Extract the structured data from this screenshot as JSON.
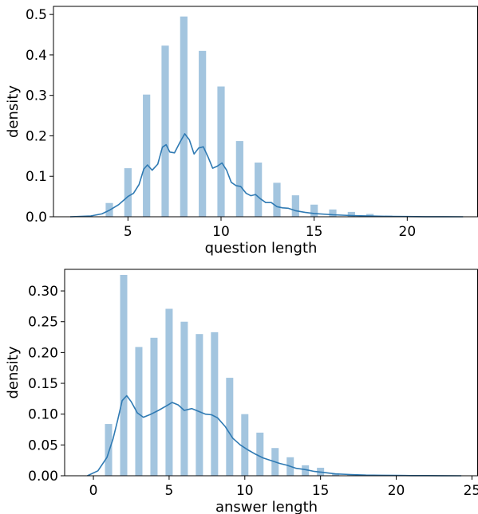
{
  "chart_data": [
    {
      "type": "bar",
      "title": "",
      "xlabel": "question length",
      "ylabel": "density",
      "xlim": [
        1,
        23.8
      ],
      "ylim": [
        0,
        0.52
      ],
      "xticks": [
        5,
        10,
        15,
        20
      ],
      "yticks": [
        0.0,
        0.1,
        0.2,
        0.3,
        0.4,
        0.5
      ],
      "ytick_labels": [
        "0.0",
        "0.1",
        "0.2",
        "0.3",
        "0.4",
        "0.5"
      ],
      "bar_color": "#a3c5df",
      "line_color": "#2f7ab3",
      "histogram": {
        "x": [
          4,
          5,
          6,
          7,
          8,
          9,
          10,
          11,
          12,
          13,
          14,
          15,
          16,
          17,
          18,
          19
        ],
        "values": [
          0.034,
          0.12,
          0.302,
          0.423,
          0.495,
          0.41,
          0.322,
          0.187,
          0.134,
          0.084,
          0.053,
          0.03,
          0.018,
          0.012,
          0.007,
          0.003
        ]
      },
      "kde": {
        "x": [
          1.9,
          3.0,
          3.6,
          4.0,
          4.5,
          5.0,
          5.3,
          5.6,
          5.85,
          6.05,
          6.3,
          6.6,
          6.85,
          7.05,
          7.25,
          7.5,
          7.8,
          8.05,
          8.3,
          8.55,
          8.8,
          9.05,
          9.3,
          9.55,
          9.8,
          10.05,
          10.3,
          10.55,
          10.8,
          11.05,
          11.35,
          11.6,
          11.85,
          12.1,
          12.4,
          12.7,
          13.0,
          13.3,
          13.6,
          14.0,
          14.5,
          15.0,
          16.0,
          17.0,
          18.0,
          19.0,
          20.0,
          21.0,
          22.0,
          23.0
        ],
        "y": [
          0.0,
          0.002,
          0.007,
          0.016,
          0.03,
          0.05,
          0.058,
          0.08,
          0.118,
          0.128,
          0.115,
          0.13,
          0.172,
          0.178,
          0.16,
          0.158,
          0.185,
          0.205,
          0.19,
          0.155,
          0.17,
          0.173,
          0.148,
          0.12,
          0.125,
          0.133,
          0.115,
          0.085,
          0.077,
          0.075,
          0.058,
          0.052,
          0.055,
          0.045,
          0.035,
          0.035,
          0.025,
          0.022,
          0.021,
          0.015,
          0.011,
          0.008,
          0.005,
          0.003,
          0.002,
          0.001,
          0.0005,
          0.0002,
          0.0001,
          0.0
        ]
      }
    },
    {
      "type": "bar",
      "title": "",
      "xlabel": "answer length",
      "ylabel": "density",
      "xlim": [
        -1.9,
        25.4
      ],
      "ylim": [
        0,
        0.335
      ],
      "xticks": [
        0,
        5,
        10,
        15,
        20,
        25
      ],
      "yticks": [
        0.0,
        0.05,
        0.1,
        0.15,
        0.2,
        0.25,
        0.3
      ],
      "ytick_labels": [
        "0.00",
        "0.05",
        "0.10",
        "0.15",
        "0.20",
        "0.25",
        "0.30"
      ],
      "bar_color": "#a3c5df",
      "line_color": "#2f7ab3",
      "histogram": {
        "x": [
          1,
          2,
          3,
          4,
          5,
          6,
          7,
          8,
          9,
          10,
          11,
          12,
          13,
          14,
          15,
          16,
          17
        ],
        "values": [
          0.084,
          0.326,
          0.209,
          0.224,
          0.271,
          0.25,
          0.23,
          0.233,
          0.159,
          0.1,
          0.07,
          0.045,
          0.03,
          0.017,
          0.013,
          0.004,
          0.002
        ]
      },
      "kde": {
        "x": [
          -0.4,
          0.3,
          0.9,
          1.3,
          1.6,
          1.9,
          2.2,
          2.5,
          2.9,
          3.3,
          3.8,
          4.3,
          4.8,
          5.2,
          5.6,
          6.0,
          6.5,
          7.0,
          7.4,
          7.8,
          8.2,
          8.7,
          9.2,
          9.7,
          10.2,
          10.7,
          11.2,
          11.7,
          12.3,
          12.8,
          13.4,
          14.0,
          14.6,
          15.3,
          16.0,
          17.0,
          18.0,
          19.0,
          20.0,
          21.0,
          22.0,
          23.0,
          24.3
        ],
        "y": [
          0.0,
          0.008,
          0.03,
          0.06,
          0.09,
          0.122,
          0.13,
          0.12,
          0.102,
          0.095,
          0.1,
          0.106,
          0.113,
          0.119,
          0.115,
          0.106,
          0.109,
          0.104,
          0.1,
          0.099,
          0.094,
          0.08,
          0.061,
          0.05,
          0.042,
          0.035,
          0.029,
          0.025,
          0.02,
          0.017,
          0.012,
          0.01,
          0.007,
          0.005,
          0.003,
          0.002,
          0.001,
          0.0008,
          0.0005,
          0.0003,
          0.0002,
          0.0001,
          0.0
        ]
      }
    }
  ]
}
